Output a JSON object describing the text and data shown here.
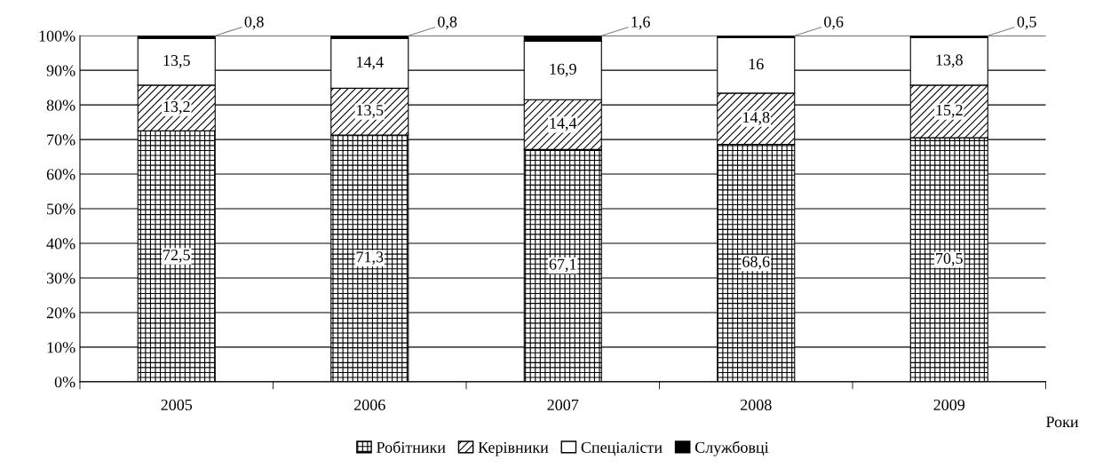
{
  "chart_data": {
    "type": "bar",
    "stacked": true,
    "xlabel": "Роки",
    "categories": [
      "2005",
      "2006",
      "2007",
      "2008",
      "2009"
    ],
    "series": [
      {
        "name": "Робітники",
        "color": "#000000",
        "values": [
          72.5,
          71.3,
          67.1,
          68.6,
          70.5
        ],
        "value_labels": [
          "72,5",
          "71,3",
          "67,1",
          "68,6",
          "70,5"
        ]
      },
      {
        "name": "Керівники",
        "color": "#000000",
        "values": [
          13.2,
          13.5,
          14.4,
          14.8,
          15.2
        ],
        "value_labels": [
          "13,2",
          "13,5",
          "14,4",
          "14,8",
          "15,2"
        ]
      },
      {
        "name": "Спеціалісти",
        "color": "#000000",
        "values": [
          13.5,
          14.4,
          16.9,
          16,
          13.8
        ],
        "value_labels": [
          "13,5",
          "14,4",
          "16,9",
          "16",
          "13,8"
        ]
      },
      {
        "name": "Службовці",
        "color": "#000000",
        "values": [
          0.8,
          0.8,
          1.6,
          0.6,
          0.5
        ],
        "value_labels": [
          "0,8",
          "0,8",
          "1,6",
          "0,6",
          "0,5"
        ]
      }
    ],
    "ylim": [
      0,
      100
    ],
    "yticks": [
      {
        "value": 0,
        "label": "0%"
      },
      {
        "value": 10,
        "label": "10%"
      },
      {
        "value": 20,
        "label": "20%"
      },
      {
        "value": 30,
        "label": "30%"
      },
      {
        "value": 40,
        "label": "40%"
      },
      {
        "value": 50,
        "label": "50%"
      },
      {
        "value": 60,
        "label": "60%"
      },
      {
        "value": 70,
        "label": "70%"
      },
      {
        "value": 80,
        "label": "80%"
      },
      {
        "value": 90,
        "label": "90%"
      },
      {
        "value": 100,
        "label": "100%"
      }
    ],
    "grid": "y",
    "legend": "bottom"
  }
}
